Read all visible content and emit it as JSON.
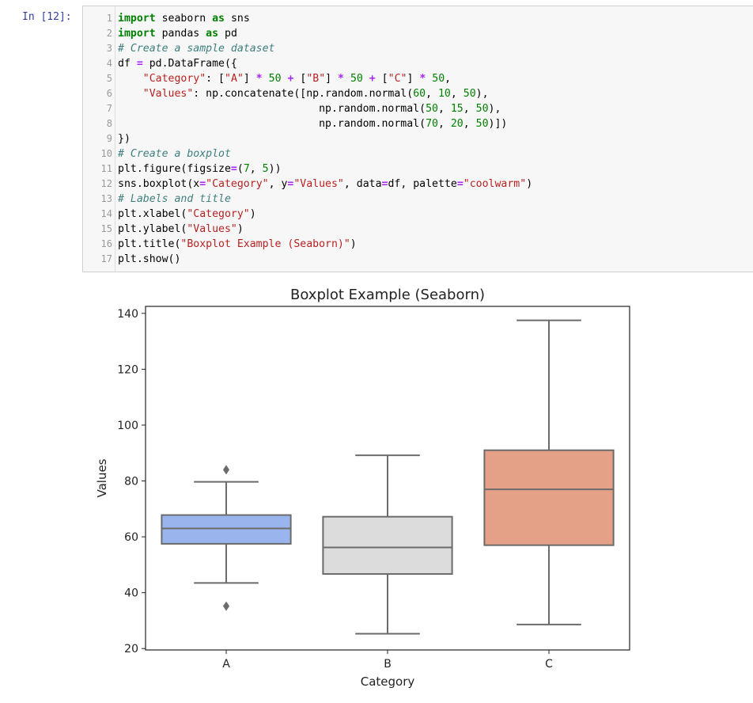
{
  "cell": {
    "prompt": "In [12]:",
    "line_numbers": [
      "1",
      "2",
      "3",
      "4",
      "5",
      "6",
      "7",
      "8",
      "9",
      "10",
      "11",
      "12",
      "13",
      "14",
      "15",
      "16",
      "17"
    ]
  },
  "code": {
    "l1": {
      "kw1": "import",
      "t1": " seaborn ",
      "kw2": "as",
      "t2": " sns"
    },
    "l2": {
      "kw1": "import",
      "t1": " pandas ",
      "kw2": "as",
      "t2": " pd"
    },
    "l3": {
      "comment": "# Create a sample dataset"
    },
    "l4": {
      "t1": "df ",
      "op1": "=",
      "t2": " pd.DataFrame({"
    },
    "l5": {
      "indent": "    ",
      "s1": "\"Category\"",
      "t1": ": [",
      "s2": "\"A\"",
      "t2": "] ",
      "op1": "*",
      "t3": " ",
      "n1": "50",
      "t4": " ",
      "op2": "+",
      "t5": " [",
      "s3": "\"B\"",
      "t6": "] ",
      "op3": "*",
      "t7": " ",
      "n2": "50",
      "t8": " ",
      "op4": "+",
      "t9": " [",
      "s4": "\"C\"",
      "t10": "] ",
      "op5": "*",
      "t11": " ",
      "n3": "50",
      "t12": ","
    },
    "l6": {
      "indent": "    ",
      "s1": "\"Values\"",
      "t1": ": np.concatenate([np.random.normal(",
      "n1": "60",
      "t2": ", ",
      "n2": "10",
      "t3": ", ",
      "n3": "50",
      "t4": "),"
    },
    "l7": {
      "indent": "                                ",
      "t1": "np.random.normal(",
      "n1": "50",
      "t2": ", ",
      "n2": "15",
      "t3": ", ",
      "n3": "50",
      "t4": "),"
    },
    "l8": {
      "indent": "                                ",
      "t1": "np.random.normal(",
      "n1": "70",
      "t2": ", ",
      "n2": "20",
      "t3": ", ",
      "n3": "50",
      "t4": ")])"
    },
    "l9": {
      "t1": "})"
    },
    "l10": {
      "comment": "# Create a boxplot"
    },
    "l11": {
      "t1": "plt.figure(figsize",
      "op1": "=",
      "t2": "(",
      "n1": "7",
      "t3": ", ",
      "n2": "5",
      "t4": "))"
    },
    "l12": {
      "t1": "sns.boxplot(x",
      "op1": "=",
      "s1": "\"Category\"",
      "t2": ", y",
      "op2": "=",
      "s2": "\"Values\"",
      "t3": ", data",
      "op3": "=",
      "t4": "df, palette",
      "op4": "=",
      "s3": "\"coolwarm\"",
      "t5": ")"
    },
    "l13": {
      "comment": "# Labels and title"
    },
    "l14": {
      "t1": "plt.xlabel(",
      "s1": "\"Category\"",
      "t2": ")"
    },
    "l15": {
      "t1": "plt.ylabel(",
      "s1": "\"Values\"",
      "t2": ")"
    },
    "l16": {
      "t1": "plt.title(",
      "s1": "\"Boxplot Example (Seaborn)\"",
      "t2": ")"
    },
    "l17": {
      "t1": "plt.show()"
    }
  },
  "chart_data": {
    "type": "box",
    "title": "Boxplot Example (Seaborn)",
    "xlabel": "Category",
    "ylabel": "Values",
    "ylim": [
      19.5,
      142.5
    ],
    "yticks": [
      20,
      40,
      60,
      80,
      100,
      120,
      140
    ],
    "grid": false,
    "legend": "none",
    "categories": [
      "A",
      "B",
      "C"
    ],
    "boxes": [
      {
        "category": "A",
        "whisker_low": 43.5,
        "q1": 57.5,
        "median": 63.0,
        "q3": 67.8,
        "whisker_high": 79.7,
        "outliers": [
          84.0,
          35.2
        ],
        "color": "#9ab5ee"
      },
      {
        "category": "B",
        "whisker_low": 25.3,
        "q1": 46.7,
        "median": 56.2,
        "q3": 67.2,
        "whisker_high": 89.2,
        "outliers": [],
        "color": "#dcdcdc"
      },
      {
        "category": "C",
        "whisker_low": 28.6,
        "q1": 57.0,
        "median": 77.0,
        "q3": 91.0,
        "whisker_high": 137.5,
        "outliers": [],
        "color": "#e5a088"
      }
    ],
    "line_color": "#6b6b6b"
  }
}
